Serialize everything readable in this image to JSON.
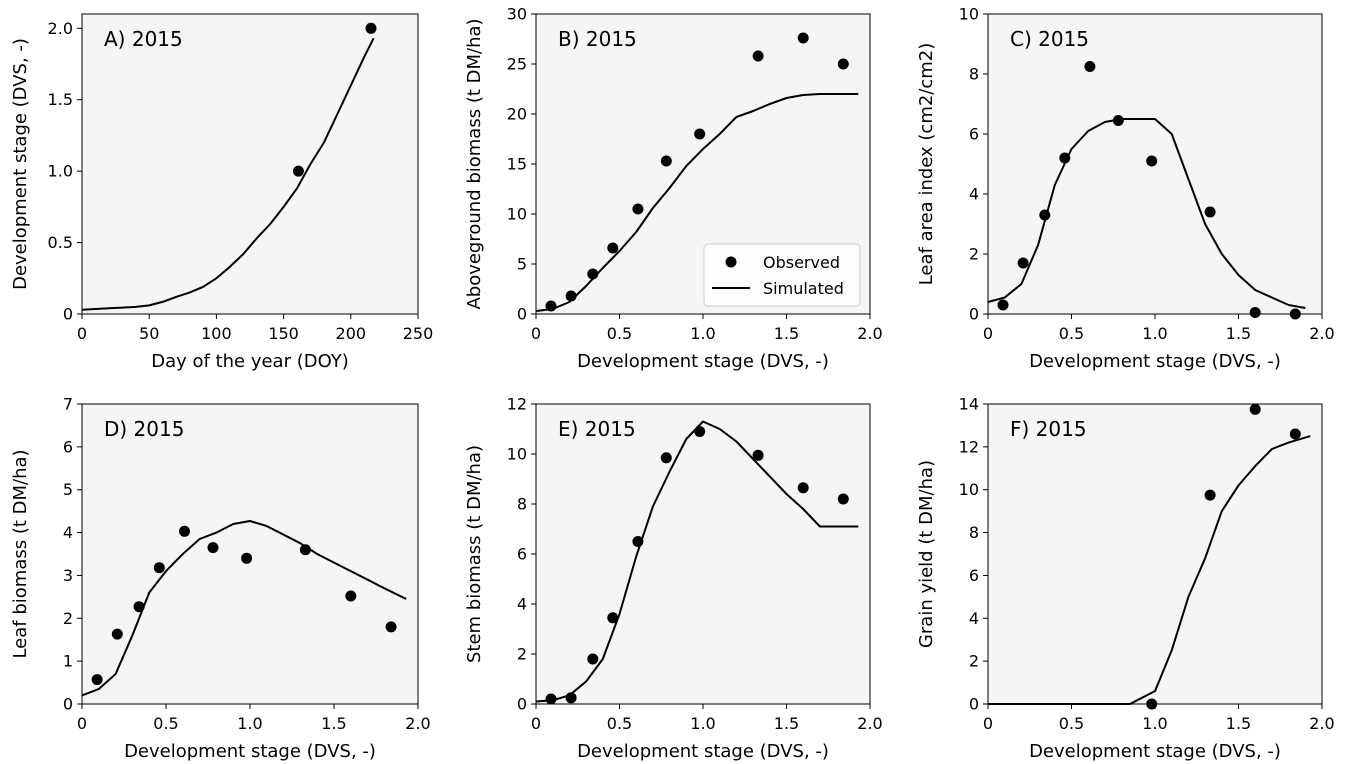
{
  "colors": {
    "panel_bg": "#f5f5f5",
    "marks": "#000000"
  },
  "chart_data": [
    {
      "panel": "A",
      "type": "scatter",
      "title": "A) 2015",
      "xlabel": "Day of the year (DOY)",
      "ylabel": "Development stage (DVS, -)",
      "xlim": [
        0,
        250
      ],
      "ylim": [
        0,
        2.1
      ],
      "xticks": [
        0,
        50,
        100,
        150,
        200,
        250
      ],
      "xtick_labels": [
        "0",
        "50",
        "100",
        "150",
        "200",
        "250"
      ],
      "yticks": [
        0,
        0.5,
        1.0,
        1.5,
        2.0
      ],
      "ytick_labels": [
        "0",
        "0.5",
        "1.0",
        "1.5",
        "2.0"
      ],
      "grid": false,
      "observed": {
        "x": [
          161,
          215
        ],
        "y": [
          1.0,
          2.0
        ]
      },
      "simulated": {
        "x": [
          0,
          10,
          20,
          30,
          40,
          50,
          60,
          70,
          80,
          90,
          100,
          110,
          120,
          130,
          140,
          150,
          160,
          170,
          180,
          190,
          200,
          210,
          217
        ],
        "y": [
          0.03,
          0.035,
          0.04,
          0.045,
          0.05,
          0.06,
          0.085,
          0.12,
          0.15,
          0.19,
          0.25,
          0.33,
          0.42,
          0.53,
          0.63,
          0.75,
          0.88,
          1.05,
          1.2,
          1.4,
          1.6,
          1.8,
          1.93
        ]
      }
    },
    {
      "panel": "B",
      "type": "scatter",
      "title": "B) 2015",
      "xlabel": "Development stage (DVS, -)",
      "ylabel": "Aboveground biomass (t DM/ha)",
      "xlim": [
        0,
        2.0
      ],
      "ylim": [
        0,
        30
      ],
      "xticks": [
        0,
        0.5,
        1.0,
        1.5,
        2.0
      ],
      "xtick_labels": [
        "0",
        "0.5",
        "1.0",
        "1.5",
        "2.0"
      ],
      "yticks": [
        0,
        5,
        10,
        15,
        20,
        25,
        30
      ],
      "ytick_labels": [
        "0",
        "5",
        "10",
        "15",
        "20",
        "25",
        "30"
      ],
      "grid": false,
      "legend": {
        "placement": "lower-right",
        "entries": [
          "Observed",
          "Simulated"
        ]
      },
      "observed": {
        "x": [
          0.09,
          0.21,
          0.34,
          0.46,
          0.61,
          0.78,
          0.98,
          1.33,
          1.6,
          1.84
        ],
        "y": [
          0.8,
          1.8,
          4.0,
          6.6,
          10.5,
          15.3,
          18.0,
          25.8,
          27.6,
          25.0
        ]
      },
      "simulated": {
        "x": [
          0.0,
          0.1,
          0.2,
          0.3,
          0.4,
          0.5,
          0.6,
          0.7,
          0.8,
          0.9,
          1.0,
          1.1,
          1.2,
          1.3,
          1.4,
          1.5,
          1.6,
          1.7,
          1.8,
          1.93
        ],
        "y": [
          0.3,
          0.5,
          1.2,
          2.8,
          4.6,
          6.3,
          8.2,
          10.6,
          12.6,
          14.8,
          16.5,
          18.0,
          19.7,
          20.3,
          21.0,
          21.6,
          21.9,
          22.0,
          22.0,
          22.0
        ]
      }
    },
    {
      "panel": "C",
      "type": "scatter",
      "title": "C) 2015",
      "xlabel": "Development stage (DVS, -)",
      "ylabel": "Leaf area index (cm2/cm2)",
      "xlim": [
        0,
        2.0
      ],
      "ylim": [
        0,
        10
      ],
      "xticks": [
        0,
        0.5,
        1.0,
        1.5,
        2.0
      ],
      "xtick_labels": [
        "0",
        "0.5",
        "1.0",
        "1.5",
        "2.0"
      ],
      "yticks": [
        0,
        2,
        4,
        6,
        8,
        10
      ],
      "ytick_labels": [
        "0",
        "2",
        "4",
        "6",
        "8",
        "10"
      ],
      "grid": false,
      "observed": {
        "x": [
          0.09,
          0.21,
          0.34,
          0.46,
          0.61,
          0.78,
          0.98,
          1.33,
          1.6,
          1.84
        ],
        "y": [
          0.3,
          1.7,
          3.3,
          5.2,
          8.25,
          6.45,
          5.1,
          3.4,
          0.05,
          0.0
        ]
      },
      "simulated": {
        "x": [
          0.0,
          0.1,
          0.2,
          0.3,
          0.4,
          0.5,
          0.6,
          0.7,
          0.8,
          0.9,
          1.0,
          1.1,
          1.2,
          1.3,
          1.4,
          1.5,
          1.6,
          1.7,
          1.8,
          1.9
        ],
        "y": [
          0.4,
          0.55,
          1.0,
          2.3,
          4.3,
          5.5,
          6.1,
          6.4,
          6.5,
          6.5,
          6.5,
          6.0,
          4.5,
          3.0,
          2.0,
          1.3,
          0.8,
          0.55,
          0.3,
          0.2
        ]
      }
    },
    {
      "panel": "D",
      "type": "scatter",
      "title": "D) 2015",
      "xlabel": "Development stage (DVS, -)",
      "ylabel": "Leaf biomass (t DM/ha)",
      "xlim": [
        0,
        2.0
      ],
      "ylim": [
        0,
        7
      ],
      "xticks": [
        0,
        0.5,
        1.0,
        1.5,
        2.0
      ],
      "xtick_labels": [
        "0",
        "0.5",
        "1.0",
        "1.5",
        "2.0"
      ],
      "yticks": [
        0,
        1,
        2,
        3,
        4,
        5,
        6,
        7
      ],
      "ytick_labels": [
        "0",
        "1",
        "2",
        "3",
        "4",
        "5",
        "6",
        "7"
      ],
      "grid": false,
      "observed": {
        "x": [
          0.09,
          0.21,
          0.34,
          0.46,
          0.61,
          0.78,
          0.98,
          1.33,
          1.6,
          1.84
        ],
        "y": [
          0.57,
          1.63,
          2.27,
          3.18,
          4.03,
          3.65,
          3.4,
          3.6,
          2.52,
          1.8
        ]
      },
      "simulated": {
        "x": [
          0.0,
          0.1,
          0.2,
          0.3,
          0.4,
          0.5,
          0.6,
          0.7,
          0.8,
          0.9,
          1.0,
          1.1,
          1.2,
          1.3,
          1.4,
          1.5,
          1.6,
          1.7,
          1.8,
          1.93
        ],
        "y": [
          0.2,
          0.35,
          0.7,
          1.6,
          2.6,
          3.1,
          3.5,
          3.85,
          4.0,
          4.2,
          4.27,
          4.15,
          3.95,
          3.75,
          3.5,
          3.3,
          3.1,
          2.9,
          2.7,
          2.45
        ]
      }
    },
    {
      "panel": "E",
      "type": "scatter",
      "title": "E) 2015",
      "xlabel": "Development stage (DVS, -)",
      "ylabel": "Stem biomass (t DM/ha)",
      "xlim": [
        0,
        2.0
      ],
      "ylim": [
        0,
        12
      ],
      "xticks": [
        0,
        0.5,
        1.0,
        1.5,
        2.0
      ],
      "xtick_labels": [
        "0",
        "0.5",
        "1.0",
        "1.5",
        "2.0"
      ],
      "yticks": [
        0,
        2,
        4,
        6,
        8,
        10,
        12
      ],
      "ytick_labels": [
        "0",
        "2",
        "4",
        "6",
        "8",
        "10",
        "12"
      ],
      "grid": false,
      "observed": {
        "x": [
          0.09,
          0.21,
          0.34,
          0.46,
          0.61,
          0.78,
          0.98,
          1.33,
          1.6,
          1.84
        ],
        "y": [
          0.2,
          0.25,
          1.8,
          3.45,
          6.5,
          9.85,
          10.9,
          9.95,
          8.65,
          8.2
        ]
      },
      "simulated": {
        "x": [
          0.0,
          0.1,
          0.2,
          0.3,
          0.4,
          0.5,
          0.6,
          0.7,
          0.8,
          0.9,
          1.0,
          1.1,
          1.2,
          1.3,
          1.4,
          1.5,
          1.6,
          1.7,
          1.8,
          1.93
        ],
        "y": [
          0.1,
          0.15,
          0.35,
          0.9,
          1.8,
          3.6,
          5.9,
          7.9,
          9.3,
          10.6,
          11.3,
          11.0,
          10.5,
          9.8,
          9.1,
          8.4,
          7.8,
          7.1,
          7.1,
          7.1
        ]
      }
    },
    {
      "panel": "F",
      "type": "scatter",
      "title": "F) 2015",
      "xlabel": "Development stage (DVS, -)",
      "ylabel": "Grain yield (t DM/ha)",
      "xlim": [
        0,
        2.0
      ],
      "ylim": [
        0,
        14
      ],
      "xticks": [
        0,
        0.5,
        1.0,
        1.5,
        2.0
      ],
      "xtick_labels": [
        "0",
        "0.5",
        "1.0",
        "1.5",
        "2.0"
      ],
      "yticks": [
        0,
        2,
        4,
        6,
        8,
        10,
        12,
        14
      ],
      "ytick_labels": [
        "0",
        "2",
        "4",
        "6",
        "8",
        "10",
        "12",
        "14"
      ],
      "grid": false,
      "observed": {
        "x": [
          0.98,
          1.33,
          1.6,
          1.84
        ],
        "y": [
          0.0,
          9.75,
          13.75,
          12.6
        ]
      },
      "simulated": {
        "x": [
          0.0,
          0.2,
          0.4,
          0.6,
          0.8,
          0.85,
          0.9,
          1.0,
          1.1,
          1.2,
          1.3,
          1.4,
          1.5,
          1.6,
          1.7,
          1.8,
          1.93
        ],
        "y": [
          0.0,
          0.0,
          0.0,
          0.0,
          0.0,
          0.0,
          0.2,
          0.6,
          2.5,
          5.0,
          6.8,
          9.0,
          10.2,
          11.1,
          11.9,
          12.2,
          12.5
        ]
      }
    }
  ]
}
